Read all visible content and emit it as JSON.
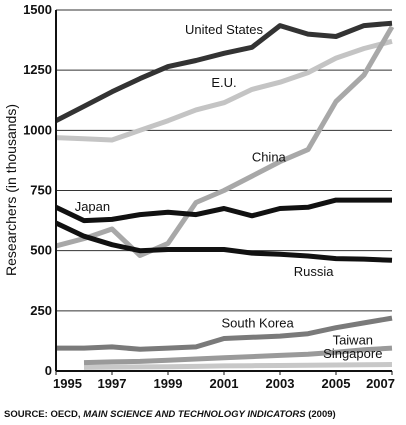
{
  "chart_data": {
    "type": "line",
    "ylabel": "Researchers (in thousands)",
    "xlim": [
      1995,
      2007
    ],
    "ylim": [
      0,
      1500
    ],
    "x_ticks": [
      1995,
      1997,
      1999,
      2001,
      2003,
      2005,
      2007
    ],
    "y_ticks": [
      0,
      250,
      500,
      750,
      1000,
      1250,
      1500
    ],
    "grid": "horizontal",
    "source": {
      "prefix": "SOURCE: OECD, ",
      "title": "MAIN SCIENCE AND TECHNOLOGY INDICATORS",
      "suffix": " (2009)"
    },
    "series": [
      {
        "name": "United States",
        "color": "#333333",
        "x": [
          1995,
          1996,
          1997,
          1998,
          1999,
          2000,
          2001,
          2002,
          2003,
          2004,
          2005,
          2006,
          2007
        ],
        "values": [
          1040,
          1100,
          1160,
          1215,
          1265,
          1290,
          1320,
          1345,
          1435,
          1400,
          1390,
          1435,
          1445
        ]
      },
      {
        "name": "E.U.",
        "color": "#c4c4c4",
        "x": [
          1995,
          1996,
          1997,
          1998,
          1999,
          2000,
          2001,
          2002,
          2003,
          2004,
          2005,
          2006,
          2007
        ],
        "values": [
          970,
          965,
          960,
          1000,
          1040,
          1085,
          1115,
          1170,
          1200,
          1240,
          1300,
          1340,
          1370
        ]
      },
      {
        "name": "China",
        "color": "#a8a8a8",
        "x": [
          1995,
          1996,
          1997,
          1998,
          1999,
          2000,
          2001,
          2002,
          2003,
          2004,
          2005,
          2006,
          2007
        ],
        "values": [
          520,
          550,
          590,
          480,
          530,
          700,
          750,
          810,
          870,
          920,
          1120,
          1230,
          1430
        ]
      },
      {
        "name": "Japan",
        "color": "#111111",
        "x": [
          1995,
          1996,
          1997,
          1998,
          1999,
          2000,
          2001,
          2002,
          2003,
          2004,
          2005,
          2006,
          2007
        ],
        "values": [
          680,
          625,
          630,
          650,
          660,
          650,
          675,
          645,
          675,
          680,
          710,
          710,
          710
        ]
      },
      {
        "name": "Russia",
        "color": "#111111",
        "x": [
          1995,
          1996,
          1997,
          1998,
          1999,
          2000,
          2001,
          2002,
          2003,
          2004,
          2005,
          2006,
          2007
        ],
        "values": [
          615,
          560,
          525,
          500,
          505,
          505,
          505,
          490,
          485,
          478,
          467,
          465,
          460
        ]
      },
      {
        "name": "South Korea",
        "color": "#7a7a7a",
        "x": [
          1995,
          1996,
          1997,
          1998,
          1999,
          2000,
          2001,
          2002,
          2003,
          2004,
          2005,
          2006,
          2007
        ],
        "values": [
          95,
          95,
          100,
          90,
          95,
          100,
          135,
          140,
          145,
          155,
          180,
          200,
          220
        ]
      },
      {
        "name": "Taiwan",
        "color": "#9a9a9a",
        "x": [
          1996,
          1997,
          1998,
          1999,
          2000,
          2001,
          2002,
          2003,
          2004,
          2005,
          2006,
          2007
        ],
        "values": [
          35,
          38,
          40,
          45,
          50,
          55,
          60,
          65,
          70,
          78,
          88,
          95
        ]
      },
      {
        "name": "Singapore",
        "color": "#c8c8c8",
        "x": [
          1996,
          1997,
          1998,
          1999,
          2000,
          2001,
          2002,
          2003,
          2004,
          2005,
          2006,
          2007
        ],
        "values": [
          15,
          16,
          17,
          18,
          19,
          21,
          22,
          23,
          24,
          25,
          26,
          27
        ]
      }
    ]
  }
}
